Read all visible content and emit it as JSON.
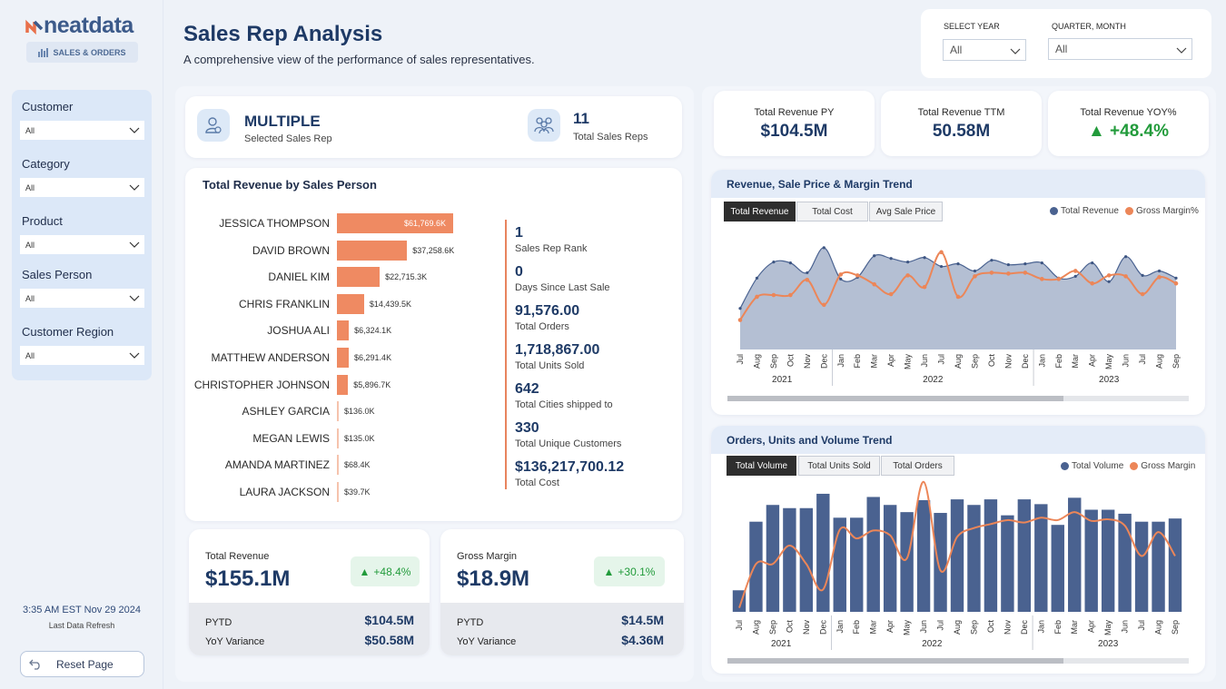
{
  "brand": {
    "logo": "neatdata",
    "module": "SALES & ORDERS"
  },
  "filters": [
    {
      "label": "Customer",
      "value": "All"
    },
    {
      "label": "Category",
      "value": "All"
    },
    {
      "label": "Product",
      "value": "All"
    },
    {
      "label": "Sales Person",
      "value": "All"
    },
    {
      "label": "Customer Region",
      "value": "All"
    }
  ],
  "refresh": {
    "time": "3:35 AM EST Nov 29 2024",
    "label": "Last Data Refresh"
  },
  "reset_label": "Reset Page",
  "header": {
    "title": "Sales Rep Analysis",
    "subtitle": "A comprehensive view of the performance of sales representatives."
  },
  "year_filter": {
    "label": "SELECT YEAR",
    "value": "All"
  },
  "quarter_filter": {
    "label": "QUARTER, MONTH",
    "value": "All"
  },
  "selected_rep": {
    "value": "MULTIPLE",
    "label": "Selected Sales Rep"
  },
  "total_reps": {
    "value": "11",
    "label": "Total Sales Reps"
  },
  "revenue_by_person": {
    "title": "Total Revenue by Sales Person",
    "reps": [
      {
        "name": "JESSICA THOMPSON",
        "value": 61769.6,
        "label": "$61,769.6K"
      },
      {
        "name": "DAVID BROWN",
        "value": 37258.6,
        "label": "$37,258.6K"
      },
      {
        "name": "DANIEL KIM",
        "value": 22715.3,
        "label": "$22,715.3K"
      },
      {
        "name": "CHRIS FRANKLIN",
        "value": 14439.5,
        "label": "$14,439.5K"
      },
      {
        "name": "JOSHUA ALI",
        "value": 6324.1,
        "label": "$6,324.1K"
      },
      {
        "name": "MATTHEW ANDERSON",
        "value": 6291.4,
        "label": "$6,291.4K"
      },
      {
        "name": "CHRISTOPHER JOHNSON",
        "value": 5896.7,
        "label": "$5,896.7K"
      },
      {
        "name": "ASHLEY GARCIA",
        "value": 136.0,
        "label": "$136.0K"
      },
      {
        "name": "MEGAN LEWIS",
        "value": 135.0,
        "label": "$135.0K"
      },
      {
        "name": "AMANDA MARTINEZ",
        "value": 68.4,
        "label": "$68.4K"
      },
      {
        "name": "LAURA JACKSON",
        "value": 39.7,
        "label": "$39.7K"
      }
    ]
  },
  "stats": [
    {
      "value": "1",
      "label": "Sales Rep Rank"
    },
    {
      "value": "0",
      "label": "Days Since Last Sale"
    },
    {
      "value": "91,576.00",
      "label": "Total Orders"
    },
    {
      "value": "1,718,867.00",
      "label": "Total Units Sold"
    },
    {
      "value": "642",
      "label": "Total Cities shipped to"
    },
    {
      "value": "330",
      "label": "Total Unique Customers"
    },
    {
      "value": "$136,217,700.12",
      "label": "Total Cost"
    }
  ],
  "revenue_card": {
    "title": "Total Revenue",
    "value": "$155.1M",
    "change": "+48.4%",
    "pytd_label": "PYTD",
    "pytd": "$104.5M",
    "var_label": "YoY Variance",
    "variance": "$50.58M"
  },
  "margin_card": {
    "title": "Gross Margin",
    "value": "$18.9M",
    "change": "+30.1%",
    "pytd_label": "PYTD",
    "pytd": "$14.5M",
    "var_label": "YoY Variance",
    "variance": "$4.36M"
  },
  "right_kpis": [
    {
      "title": "Total Revenue PY",
      "value": "$104.5M"
    },
    {
      "title": "Total Revenue TTM",
      "value": "50.58M"
    },
    {
      "title": "Total Revenue YOY%",
      "value": "+48.4%"
    }
  ],
  "trend1": {
    "title": "Revenue, Sale Price & Margin Trend",
    "tabs": [
      "Total Revenue",
      "Total Cost",
      "Avg Sale Price"
    ],
    "legend": [
      "Total Revenue",
      "Gross Margin%"
    ]
  },
  "trend2": {
    "title": "Orders, Units and Volume Trend",
    "tabs": [
      "Total Volume",
      "Total Units Sold",
      "Total Orders"
    ],
    "legend": [
      "Total Volume",
      "Gross Margin"
    ]
  },
  "chart_data": [
    {
      "type": "area",
      "title": "Revenue, Sale Price & Margin Trend",
      "months": [
        "Jul",
        "Aug",
        "Sep",
        "Oct",
        "Nov",
        "Dec",
        "Jan",
        "Feb",
        "Mar",
        "Apr",
        "May",
        "Jun",
        "Jul",
        "Aug",
        "Sep",
        "Oct",
        "Nov",
        "Dec",
        "Jan",
        "Feb",
        "Mar",
        "Apr",
        "May",
        "Jun",
        "Jul",
        "Aug",
        "Sep"
      ],
      "years": [
        {
          "label": "2021",
          "start": 0,
          "end": 5
        },
        {
          "label": "2022",
          "start": 6,
          "end": 17
        },
        {
          "label": "2023",
          "start": 18,
          "end": 26
        }
      ],
      "series": [
        {
          "name": "Total Revenue",
          "values": [
            4.6,
            8.0,
            9.8,
            9.7,
            8.6,
            11.4,
            7.9,
            8.1,
            10.5,
            10.2,
            9.8,
            10.3,
            9.3,
            9.6,
            8.8,
            10.0,
            9.5,
            9.6,
            9.7,
            8.0,
            8.2,
            9.7,
            7.6,
            10.4,
            8.3,
            8.8,
            8.0
          ]
        },
        {
          "name": "Gross Margin%",
          "values": [
            3.3,
            5.9,
            6.1,
            6.1,
            7.8,
            5.0,
            8.4,
            8.3,
            7.3,
            6.2,
            8.3,
            7.0,
            10.9,
            5.9,
            8.2,
            8.6,
            8.5,
            8.6,
            7.9,
            7.9,
            8.8,
            7.4,
            8.3,
            8.2,
            6.2,
            8.1,
            7.4
          ]
        }
      ]
    },
    {
      "type": "bar",
      "title": "Orders, Units and Volume Trend",
      "months": [
        "Jul",
        "Aug",
        "Sep",
        "Oct",
        "Nov",
        "Dec",
        "Jan",
        "Feb",
        "Mar",
        "Apr",
        "May",
        "Jun",
        "Jul",
        "Aug",
        "Sep",
        "Oct",
        "Nov",
        "Dec",
        "Jan",
        "Feb",
        "Mar",
        "Apr",
        "May",
        "Jun",
        "Jul",
        "Aug",
        "Sep"
      ],
      "years": [
        {
          "label": "2021",
          "start": 0,
          "end": 5
        },
        {
          "label": "2022",
          "start": 6,
          "end": 17
        },
        {
          "label": "2023",
          "start": 18,
          "end": 26
        }
      ],
      "series": [
        {
          "name": "Total Volume",
          "values": [
            2.7,
            11.3,
            13.4,
            13.0,
            13.0,
            14.8,
            11.8,
            11.8,
            14.4,
            13.4,
            12.5,
            14.0,
            12.4,
            14.1,
            13.4,
            14.1,
            12.1,
            14.1,
            13.5,
            10.9,
            14.3,
            12.8,
            12.8,
            12.3,
            11.3,
            11.3,
            11.7
          ]
        },
        {
          "name": "Gross Margin",
          "values": [
            0.5,
            6.0,
            6.0,
            8.3,
            6.0,
            2.8,
            10.3,
            9.2,
            10.2,
            9.6,
            6.7,
            16.3,
            5.2,
            9.4,
            10.5,
            11.0,
            11.5,
            11.2,
            11.8,
            11.5,
            12.5,
            11.4,
            11.6,
            10.8,
            7.0,
            10.0,
            7.0
          ]
        }
      ]
    }
  ]
}
